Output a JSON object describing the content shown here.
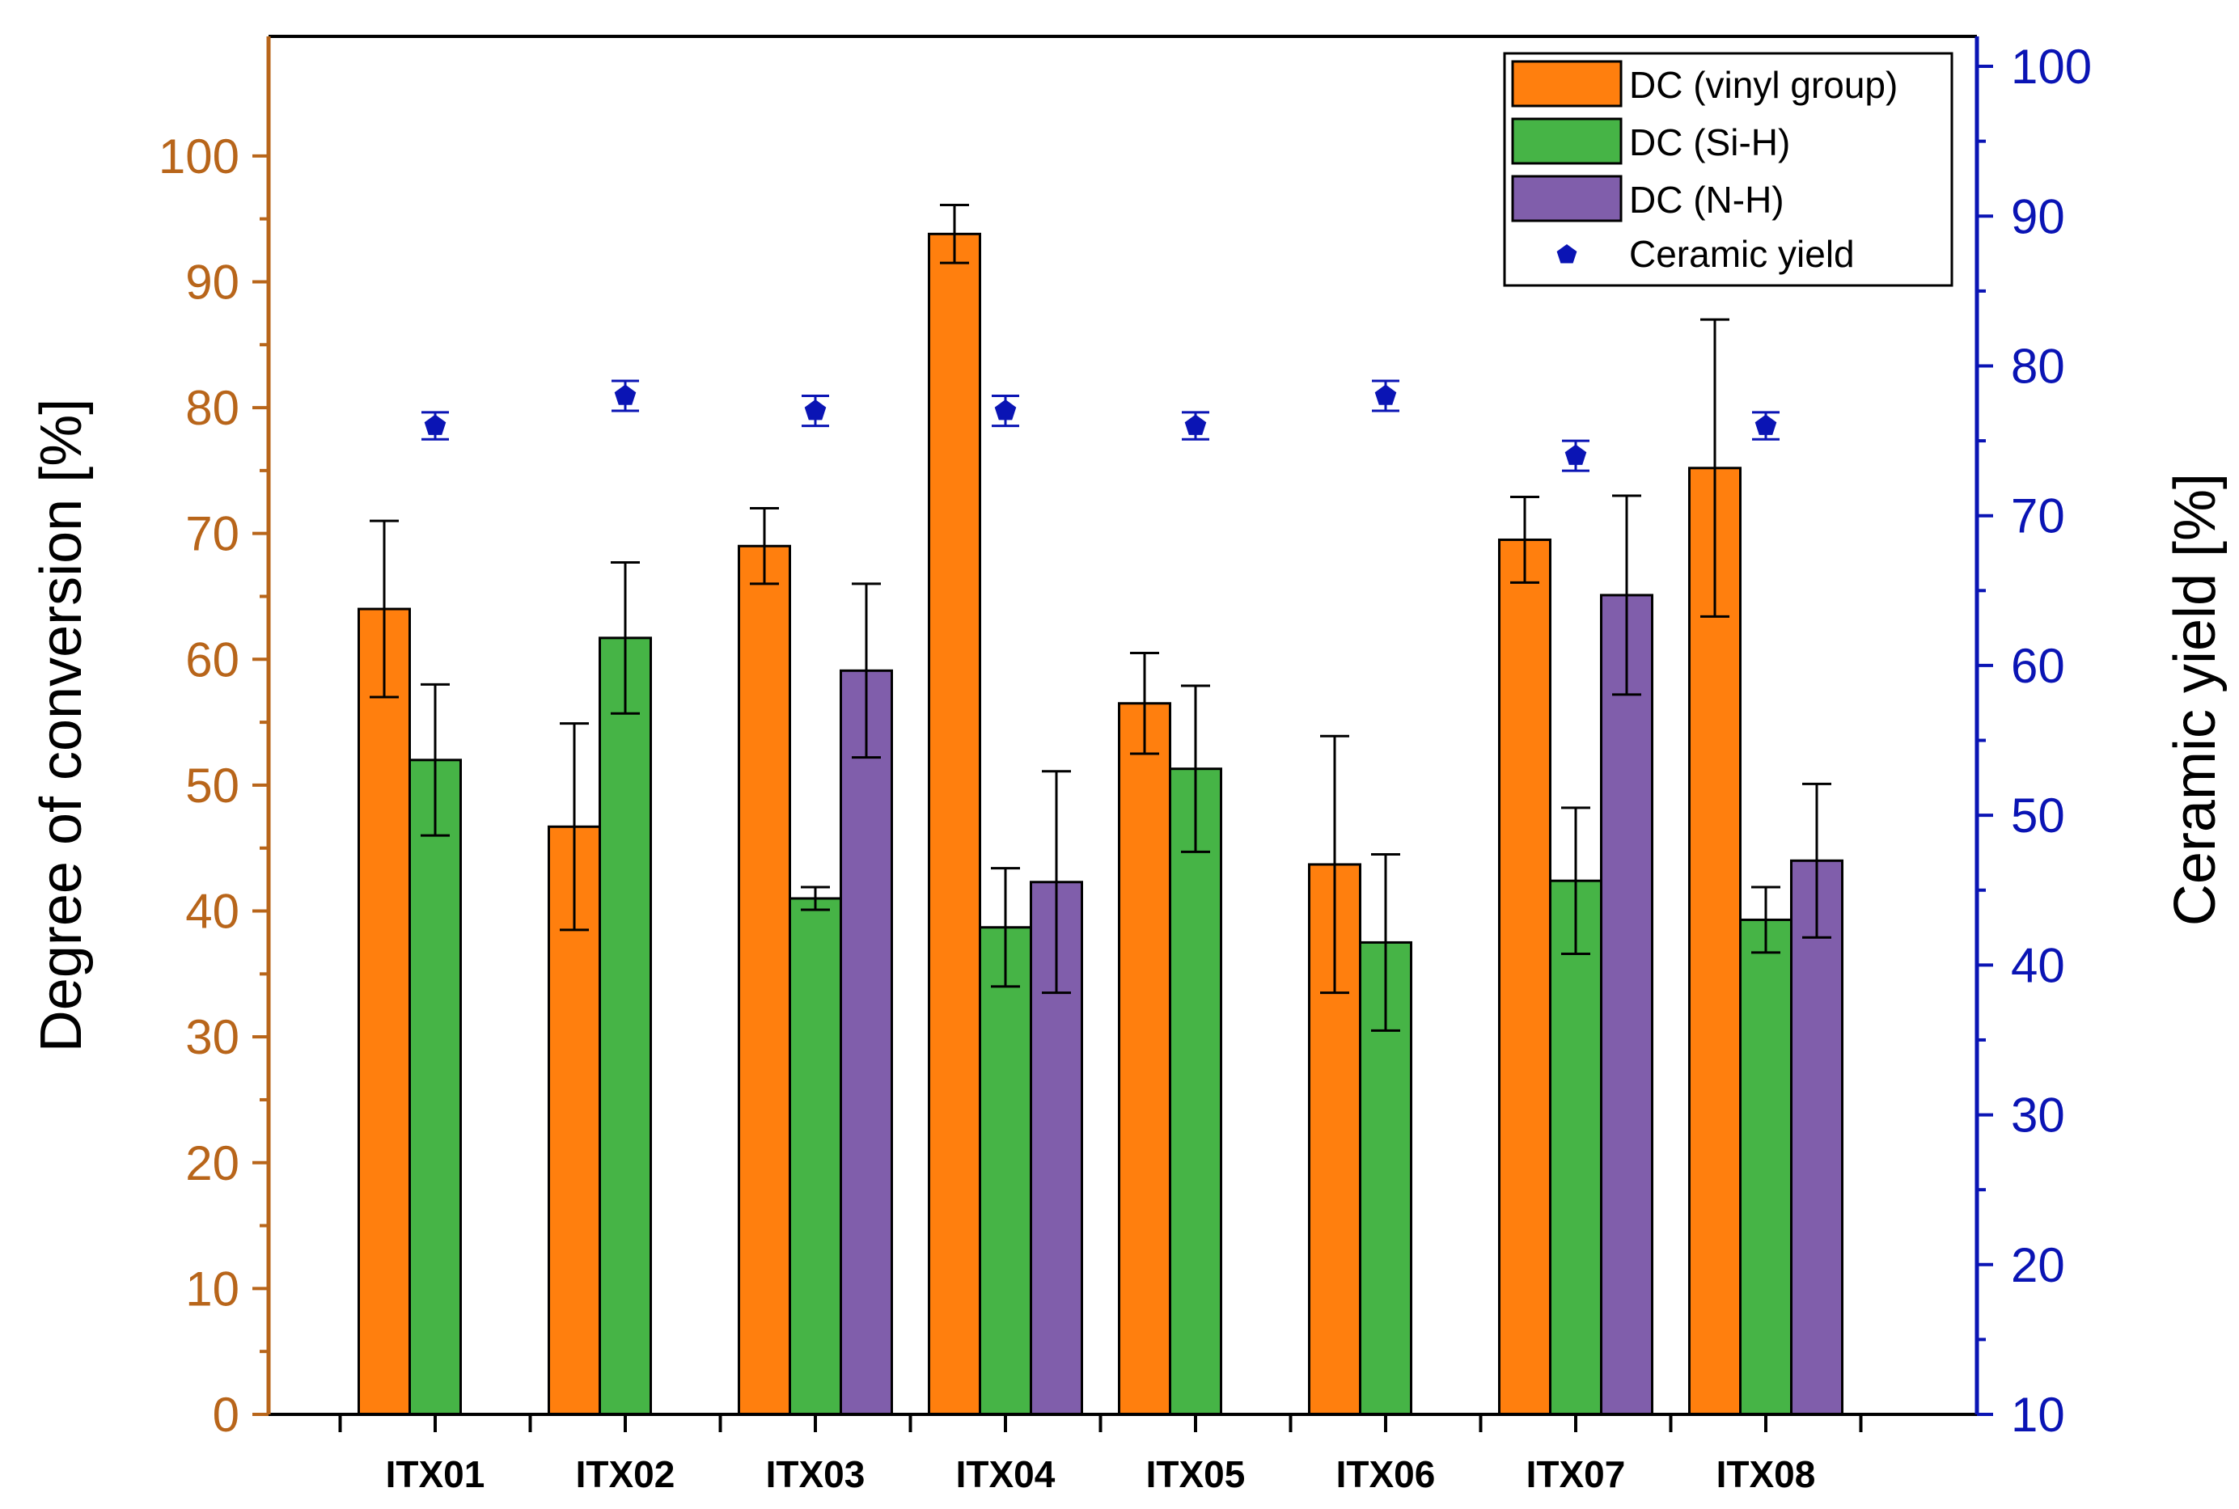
{
  "chart_data": {
    "type": "bar",
    "categories": [
      "ITX01",
      "ITX02",
      "ITX03",
      "ITX04",
      "ITX05",
      "ITX06",
      "ITX07",
      "ITX08"
    ],
    "series": [
      {
        "name": "DC (vinyl group)",
        "axis": "left",
        "color": "#ff7f0e",
        "values": [
          64.0,
          46.7,
          69.0,
          93.8,
          56.5,
          43.7,
          69.5,
          75.2
        ],
        "errors": [
          7.0,
          8.2,
          3.0,
          2.3,
          4.0,
          10.2,
          3.4,
          11.8
        ]
      },
      {
        "name": "DC (Si-H)",
        "axis": "left",
        "color": "#46b446",
        "values": [
          52.0,
          61.7,
          41.0,
          38.7,
          51.3,
          37.5,
          42.4,
          39.3
        ],
        "errors": [
          6.0,
          6.0,
          0.9,
          4.7,
          6.6,
          7.0,
          5.8,
          2.6
        ]
      },
      {
        "name": "DC (N-H)",
        "axis": "left",
        "color": "#805eab",
        "values": [
          null,
          null,
          59.1,
          42.3,
          null,
          null,
          65.1,
          44.0
        ],
        "errors": [
          null,
          null,
          6.9,
          8.8,
          null,
          null,
          7.9,
          6.1
        ]
      },
      {
        "name": "Ceramic yield",
        "axis": "right",
        "type": "scatter",
        "marker": "pentagon",
        "color": "#0a14b4",
        "values": [
          76.0,
          78.0,
          77.0,
          77.0,
          76.0,
          78.0,
          74.0,
          76.0
        ],
        "errors": [
          0.9,
          1.0,
          1.0,
          1.0,
          0.9,
          1.0,
          1.0,
          0.9
        ]
      }
    ],
    "ylabel": "Degree of conversion [%]",
    "ylim": [
      0,
      109.5
    ],
    "yticks": [
      "0",
      "10",
      "20",
      "30",
      "40",
      "50",
      "60",
      "70",
      "80",
      "90",
      "100"
    ],
    "y2label": "Ceramic yield [%]",
    "y2lim": [
      10,
      102
    ],
    "y2ticks": [
      "10",
      "20",
      "30",
      "40",
      "50",
      "60",
      "70",
      "80",
      "90",
      "100"
    ],
    "legend_position": "top-right",
    "left_axis_color": "#b8651a",
    "right_axis_color": "#0a14b4"
  }
}
